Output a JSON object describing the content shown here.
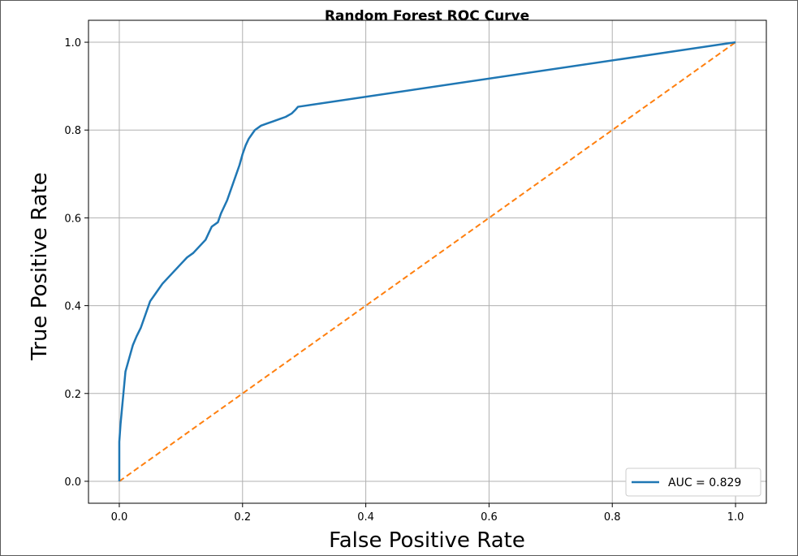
{
  "chart_data": {
    "type": "line",
    "title": "Random Forest ROC Curve",
    "xlabel": "False Positive Rate",
    "ylabel": "True Positive Rate",
    "xlim": [
      -0.05,
      1.05
    ],
    "ylim": [
      -0.05,
      1.05
    ],
    "xticks": [
      "0.0",
      "0.2",
      "0.4",
      "0.6",
      "0.8",
      "1.0"
    ],
    "yticks": [
      "0.0",
      "0.2",
      "0.4",
      "0.6",
      "0.8",
      "1.0"
    ],
    "grid": true,
    "legend_position": "bottom-right",
    "series": [
      {
        "name": "AUC = 0.829",
        "style": "solid",
        "color": "#1f77b4",
        "points": [
          [
            0.0,
            0.0
          ],
          [
            0.0,
            0.09
          ],
          [
            0.002,
            0.13
          ],
          [
            0.004,
            0.16
          ],
          [
            0.006,
            0.19
          ],
          [
            0.008,
            0.22
          ],
          [
            0.01,
            0.25
          ],
          [
            0.014,
            0.27
          ],
          [
            0.018,
            0.29
          ],
          [
            0.022,
            0.31
          ],
          [
            0.028,
            0.33
          ],
          [
            0.035,
            0.35
          ],
          [
            0.04,
            0.37
          ],
          [
            0.045,
            0.39
          ],
          [
            0.05,
            0.41
          ],
          [
            0.06,
            0.43
          ],
          [
            0.07,
            0.45
          ],
          [
            0.08,
            0.465
          ],
          [
            0.09,
            0.48
          ],
          [
            0.1,
            0.495
          ],
          [
            0.11,
            0.51
          ],
          [
            0.12,
            0.52
          ],
          [
            0.13,
            0.535
          ],
          [
            0.14,
            0.55
          ],
          [
            0.145,
            0.565
          ],
          [
            0.15,
            0.58
          ],
          [
            0.16,
            0.59
          ],
          [
            0.165,
            0.61
          ],
          [
            0.17,
            0.625
          ],
          [
            0.175,
            0.64
          ],
          [
            0.18,
            0.66
          ],
          [
            0.185,
            0.68
          ],
          [
            0.19,
            0.7
          ],
          [
            0.195,
            0.72
          ],
          [
            0.2,
            0.745
          ],
          [
            0.205,
            0.765
          ],
          [
            0.21,
            0.78
          ],
          [
            0.215,
            0.79
          ],
          [
            0.22,
            0.8
          ],
          [
            0.23,
            0.81
          ],
          [
            0.24,
            0.815
          ],
          [
            0.25,
            0.82
          ],
          [
            0.26,
            0.825
          ],
          [
            0.27,
            0.83
          ],
          [
            0.28,
            0.838
          ],
          [
            0.285,
            0.845
          ],
          [
            0.29,
            0.853
          ],
          [
            1.0,
            1.0
          ]
        ]
      },
      {
        "name": "",
        "style": "dashed",
        "color": "#ff7f0e",
        "points": [
          [
            0.0,
            0.0
          ],
          [
            1.0,
            1.0
          ]
        ]
      }
    ]
  }
}
